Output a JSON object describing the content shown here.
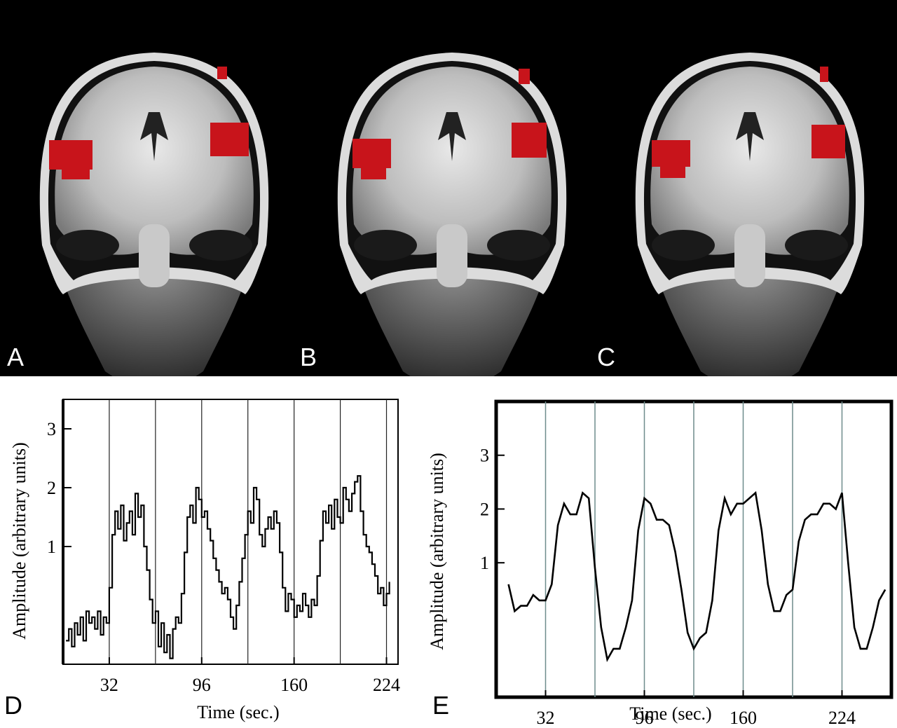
{
  "panels": {
    "a": "A",
    "b": "B",
    "c": "C",
    "d": "D",
    "e": "E"
  },
  "colors": {
    "background_top": "#000000",
    "activation": "#c8141b",
    "trace": "#000000",
    "block_lines_e": "#6f8c8c"
  },
  "chart_data": [
    {
      "panel": "D",
      "type": "line",
      "title": "",
      "xlabel": "Time (sec.)",
      "ylabel": "Amplitude (arbitrary units)",
      "xlim": [
        0,
        232
      ],
      "ylim": [
        -1.0,
        3.5
      ],
      "x_ticks": [
        32,
        96,
        160,
        224
      ],
      "y_ticks": [
        1,
        2,
        3
      ],
      "block_boundaries": [
        32,
        64,
        96,
        128,
        160,
        192,
        224
      ],
      "series": [
        {
          "x": [
            2,
            4,
            6,
            8,
            10,
            12,
            14,
            16,
            18,
            20,
            22,
            24,
            26,
            28,
            30,
            32,
            34,
            36,
            38,
            40,
            42,
            44,
            46,
            48,
            50,
            52,
            54,
            56,
            58,
            60,
            62,
            64,
            66,
            68,
            70,
            72,
            74,
            76,
            78,
            80,
            82,
            84,
            86,
            88,
            90,
            92,
            94,
            96,
            98,
            100,
            102,
            104,
            106,
            108,
            110,
            112,
            114,
            116,
            118,
            120,
            122,
            124,
            126,
            128,
            130,
            132,
            134,
            136,
            138,
            140,
            142,
            144,
            146,
            148,
            150,
            152,
            154,
            156,
            158,
            160,
            162,
            164,
            166,
            168,
            170,
            172,
            174,
            176,
            178,
            180,
            182,
            184,
            186,
            188,
            190,
            192,
            194,
            196,
            198,
            200,
            202,
            204,
            206,
            208,
            210,
            212,
            214,
            216,
            218,
            220,
            222,
            224,
            226
          ],
          "y": [
            -0.6,
            -0.4,
            -0.7,
            -0.3,
            -0.5,
            -0.2,
            -0.6,
            -0.1,
            -0.3,
            -0.2,
            -0.4,
            -0.1,
            -0.5,
            -0.2,
            -0.3,
            0.3,
            1.2,
            1.6,
            1.3,
            1.7,
            1.1,
            1.4,
            1.6,
            1.2,
            1.9,
            1.5,
            1.7,
            1.0,
            0.6,
            0.1,
            -0.3,
            -0.1,
            -0.7,
            -0.3,
            -0.8,
            -0.5,
            -0.9,
            -0.4,
            -0.2,
            -0.3,
            0.2,
            0.9,
            1.5,
            1.7,
            1.4,
            2.0,
            1.8,
            1.5,
            1.6,
            1.3,
            1.1,
            0.8,
            0.6,
            0.4,
            0.2,
            0.3,
            0.1,
            -0.2,
            -0.4,
            0.0,
            0.4,
            0.8,
            1.2,
            1.6,
            1.4,
            2.0,
            1.8,
            1.2,
            1.0,
            1.3,
            1.5,
            1.3,
            1.6,
            1.4,
            0.9,
            0.3,
            -0.1,
            0.2,
            0.1,
            -0.2,
            0.0,
            -0.1,
            0.2,
            0.0,
            -0.2,
            0.1,
            0.0,
            0.5,
            1.1,
            1.6,
            1.4,
            1.7,
            1.3,
            1.8,
            1.5,
            1.4,
            2.0,
            1.8,
            1.6,
            1.9,
            2.1,
            2.2,
            1.6,
            1.2,
            1.0,
            0.9,
            0.7,
            0.5,
            0.2,
            0.3,
            0.0,
            0.2,
            0.4
          ]
        }
      ]
    },
    {
      "panel": "E",
      "type": "line",
      "title": "",
      "xlabel": "Time (sec.)",
      "ylabel": "Amplitude (arbitrary units)",
      "xlim": [
        0,
        256
      ],
      "ylim": [
        -1.5,
        4.0
      ],
      "x_ticks": [
        32,
        96,
        160,
        224
      ],
      "y_ticks": [
        1,
        2,
        3
      ],
      "block_boundaries": [
        32,
        64,
        96,
        128,
        160,
        192,
        224
      ],
      "series": [
        {
          "x": [
            8,
            12,
            16,
            20,
            24,
            28,
            32,
            36,
            40,
            44,
            48,
            52,
            56,
            60,
            64,
            68,
            72,
            76,
            80,
            84,
            88,
            92,
            96,
            100,
            104,
            108,
            112,
            116,
            120,
            124,
            128,
            132,
            136,
            140,
            144,
            148,
            152,
            156,
            160,
            164,
            168,
            172,
            176,
            180,
            184,
            188,
            192,
            196,
            200,
            204,
            208,
            212,
            216,
            220,
            224,
            228,
            232,
            236,
            240,
            244,
            248,
            252
          ],
          "y": [
            0.6,
            0.1,
            0.2,
            0.2,
            0.4,
            0.3,
            0.3,
            0.6,
            1.7,
            2.1,
            1.9,
            1.9,
            2.3,
            2.2,
            0.9,
            -0.2,
            -0.8,
            -0.6,
            -0.6,
            -0.2,
            0.3,
            1.6,
            2.2,
            2.1,
            1.8,
            1.8,
            1.7,
            1.2,
            0.5,
            -0.3,
            -0.6,
            -0.4,
            -0.3,
            0.3,
            1.6,
            2.2,
            1.9,
            2.1,
            2.1,
            2.2,
            2.3,
            1.6,
            0.6,
            0.1,
            0.1,
            0.4,
            0.5,
            1.4,
            1.8,
            1.9,
            1.9,
            2.1,
            2.1,
            2.0,
            2.3,
            1.0,
            -0.2,
            -0.6,
            -0.6,
            -0.2,
            0.3,
            0.5
          ]
        }
      ]
    }
  ]
}
